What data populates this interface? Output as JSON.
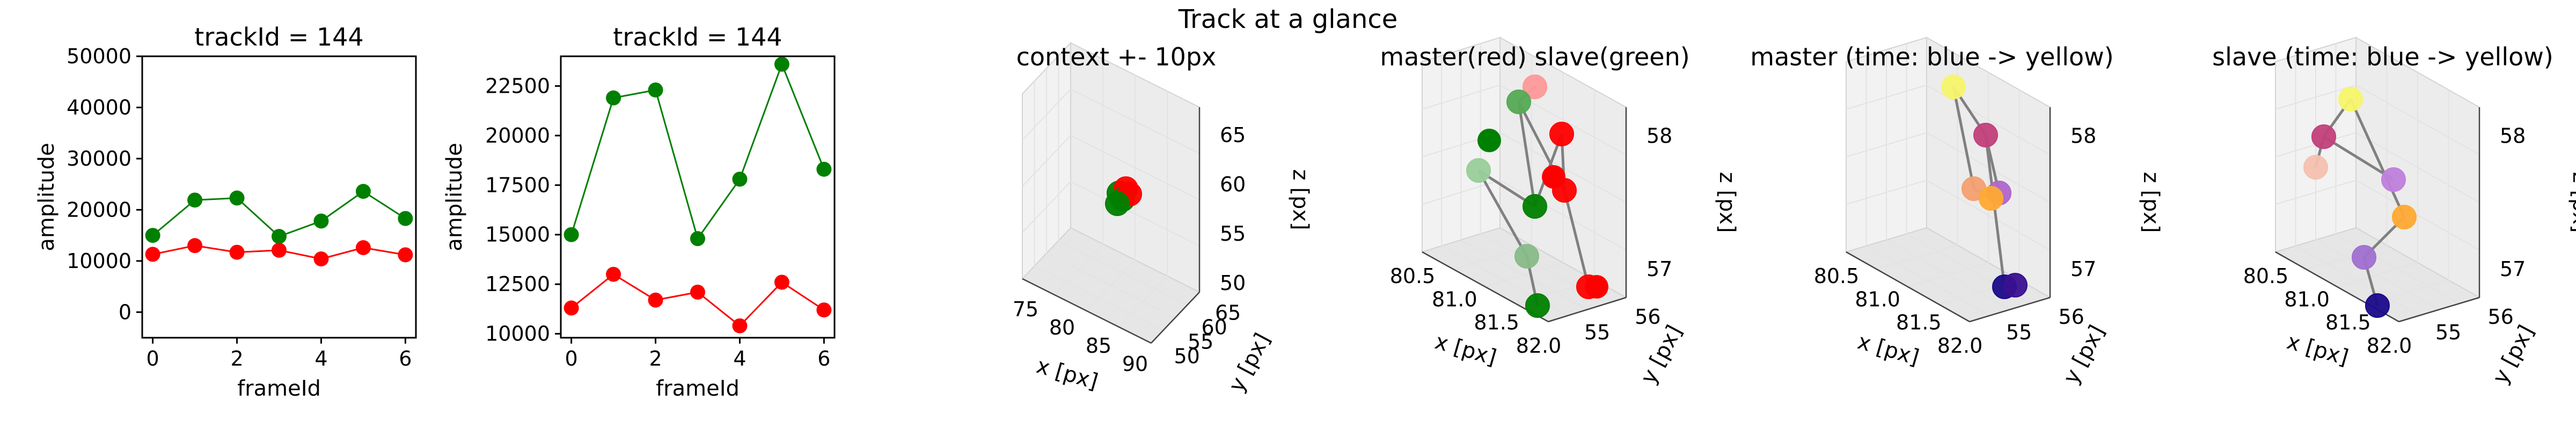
{
  "figure": {
    "suptitle": "Track at a glance"
  },
  "chart_data": [
    {
      "type": "line",
      "title": "trackId = 144",
      "xlabel": "frameId",
      "ylabel": "amplitude",
      "ylim": [
        -5000,
        50000
      ],
      "xticks": [
        0,
        2,
        4,
        6
      ],
      "yticks": [
        0,
        10000,
        20000,
        30000,
        40000,
        50000
      ],
      "x": [
        0,
        1,
        2,
        3,
        4,
        5,
        6
      ],
      "series": [
        {
          "color": "#008000",
          "values": [
            15000,
            21900,
            22300,
            14800,
            17800,
            23600,
            18300
          ]
        },
        {
          "color": "#ff0000",
          "values": [
            11300,
            13000,
            11700,
            12100,
            10400,
            12600,
            11200
          ]
        }
      ]
    },
    {
      "type": "line",
      "title": "trackId = 144",
      "xlabel": "frameId",
      "ylabel": "amplitude",
      "ylim": [
        9800,
        24000
      ],
      "xticks": [
        0,
        2,
        4,
        6
      ],
      "yticks": [
        10000,
        12500,
        15000,
        17500,
        20000,
        22500
      ],
      "x": [
        0,
        1,
        2,
        3,
        4,
        5,
        6
      ],
      "series": [
        {
          "color": "#008000",
          "values": [
            15000,
            21900,
            22300,
            14800,
            17800,
            23600,
            18300
          ]
        },
        {
          "color": "#ff0000",
          "values": [
            11300,
            13000,
            11700,
            12100,
            10400,
            12600,
            11200
          ]
        }
      ]
    },
    {
      "type": "scatter",
      "title": "context +- 10px",
      "xlabel": "x [px]",
      "ylabel": "y [px]",
      "zlabel": "z [px]",
      "xticks": [
        "75",
        "80",
        "85",
        "90"
      ],
      "yticks": [
        "50",
        "55",
        "60",
        "65"
      ],
      "zticks": [
        "50",
        "55",
        "60",
        "65"
      ],
      "points": [
        {
          "x": 81.2,
          "y": 55.4,
          "z": 57.4,
          "color": "#008000"
        },
        {
          "x": 81.5,
          "y": 55.6,
          "z": 57.2,
          "color": "#ff0000"
        },
        {
          "x": 81.8,
          "y": 55.8,
          "z": 57.0,
          "color": "#008000"
        },
        {
          "x": 82.0,
          "y": 55.5,
          "z": 57.3,
          "color": "#ff0000"
        },
        {
          "x": 81.4,
          "y": 55.2,
          "z": 57.6,
          "color": "#008000"
        }
      ]
    },
    {
      "type": "scatter",
      "title": "master(red) slave(green)",
      "xlabel": "x [px]",
      "ylabel": "y [px]",
      "zlabel": "z [px]",
      "xticks": [
        "80.5",
        "81.0",
        "81.5",
        "82.0"
      ],
      "yticks": [
        "55",
        "56"
      ],
      "zticks": [
        "57",
        "58"
      ],
      "points": [
        {
          "color": "#ff9999"
        },
        {
          "color": "#55aa55"
        },
        {
          "color": "#ff0000"
        },
        {
          "color": "#99cc99"
        },
        {
          "color": "#ff0000"
        },
        {
          "color": "#008000"
        },
        {
          "color": "#88bb88"
        },
        {
          "color": "#008000"
        },
        {
          "color": "#ff0000"
        }
      ]
    },
    {
      "type": "scatter",
      "title": "master (time: blue -> yellow)",
      "xlabel": "x [px]",
      "ylabel": "y [px]",
      "zlabel": "z [px]",
      "xticks": [
        "80.5",
        "81.0",
        "81.5",
        "82.0"
      ],
      "yticks": [
        "55",
        "56"
      ],
      "zticks": [
        "57",
        "58"
      ],
      "points": [
        {
          "color": "#f7f56a"
        },
        {
          "color": "#c2407a"
        },
        {
          "color": "#f4a070"
        },
        {
          "color": "#b066cc"
        },
        {
          "color": "#ffaa33"
        },
        {
          "color": "#1a0a8a"
        },
        {
          "color": "#3a1090"
        }
      ]
    },
    {
      "type": "scatter",
      "title": "slave (time: blue -> yellow)",
      "xlabel": "x [px]",
      "ylabel": "y [px]",
      "zlabel": "z [px]",
      "xticks": [
        "80.5",
        "81.0",
        "81.5",
        "82.0"
      ],
      "yticks": [
        "55",
        "56"
      ],
      "zticks": [
        "57",
        "58"
      ],
      "points": [
        {
          "color": "#f7f56a"
        },
        {
          "color": "#c2407a"
        },
        {
          "color": "#f4c0b0"
        },
        {
          "color": "#c080dd"
        },
        {
          "color": "#ffaa33"
        },
        {
          "color": "#a070d0"
        },
        {
          "color": "#1a0a8a"
        }
      ]
    }
  ]
}
